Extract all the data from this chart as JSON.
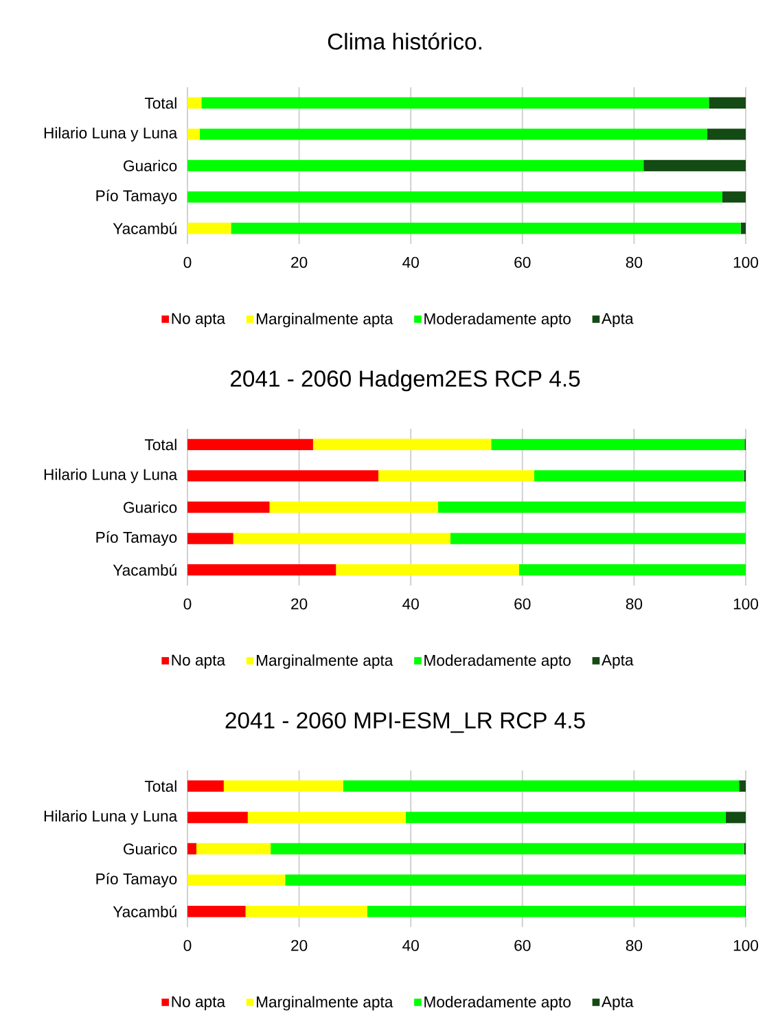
{
  "chart_data": [
    {
      "type": "bar",
      "orientation": "horizontal",
      "stacked": true,
      "title": "Clima histórico.",
      "categories": [
        "Total",
        "Hilario Luna y Luna",
        "Guarico",
        "Pío Tamayo",
        "Yacambú"
      ],
      "xlim": [
        0,
        100
      ],
      "xticks": [
        0,
        20,
        40,
        60,
        80,
        100
      ],
      "grid": "x",
      "legend": "bottom",
      "series": [
        {
          "name": "No apta",
          "color": "#ff0000",
          "values": [
            0,
            0,
            0,
            0,
            0
          ]
        },
        {
          "name": "Marginalmente apta",
          "color": "#ffff00",
          "values": [
            2.5,
            2.2,
            0,
            0,
            7.8
          ]
        },
        {
          "name": "Moderadamente apto",
          "color": "#00ff00",
          "values": [
            90.9,
            90.9,
            81.7,
            95.8,
            91.3
          ]
        },
        {
          "name": "Apta",
          "color": "#144a13",
          "values": [
            6.6,
            6.9,
            18.3,
            4.2,
            0.9
          ]
        }
      ]
    },
    {
      "type": "bar",
      "orientation": "horizontal",
      "stacked": true,
      "title": "2041 - 2060 Hadgem2ES RCP 4.5",
      "categories": [
        "Total",
        "Hilario Luna y Luna",
        "Guarico",
        "Pío Tamayo",
        "Yacambú"
      ],
      "xlim": [
        0,
        100
      ],
      "xticks": [
        0,
        20,
        40,
        60,
        80,
        100
      ],
      "grid": "x",
      "legend": "bottom",
      "series": [
        {
          "name": "No apta",
          "color": "#ff0000",
          "values": [
            22.5,
            34.2,
            14.7,
            8.2,
            26.6
          ]
        },
        {
          "name": "Marginalmente apta",
          "color": "#ffff00",
          "values": [
            31.9,
            27.9,
            30.2,
            38.9,
            32.8
          ]
        },
        {
          "name": "Moderadamente apto",
          "color": "#00ff00",
          "values": [
            45.4,
            37.6,
            55.1,
            52.9,
            40.6
          ]
        },
        {
          "name": "Apta",
          "color": "#144a13",
          "values": [
            0.2,
            0.3,
            0,
            0,
            0
          ]
        }
      ]
    },
    {
      "type": "bar",
      "orientation": "horizontal",
      "stacked": true,
      "title": "2041 - 2060 MPI-ESM_LR RCP 4.5",
      "categories": [
        "Total",
        "Hilario Luna y Luna",
        "Guarico",
        "Pío Tamayo",
        "Yacambú"
      ],
      "xlim": [
        0,
        100
      ],
      "xticks": [
        0,
        20,
        40,
        60,
        80,
        100
      ],
      "grid": "x",
      "legend": "bottom",
      "series": [
        {
          "name": "No apta",
          "color": "#ff0000",
          "values": [
            6.5,
            10.8,
            1.6,
            0,
            10.4
          ]
        },
        {
          "name": "Marginalmente apta",
          "color": "#ffff00",
          "values": [
            21.4,
            28.3,
            13.3,
            17.5,
            21.8
          ]
        },
        {
          "name": "Moderadamente apto",
          "color": "#00ff00",
          "values": [
            70.9,
            57.3,
            84.8,
            82.4,
            67.7
          ]
        },
        {
          "name": "Apta",
          "color": "#144a13",
          "values": [
            1.2,
            3.6,
            0.3,
            0.1,
            0.1
          ]
        }
      ]
    }
  ]
}
